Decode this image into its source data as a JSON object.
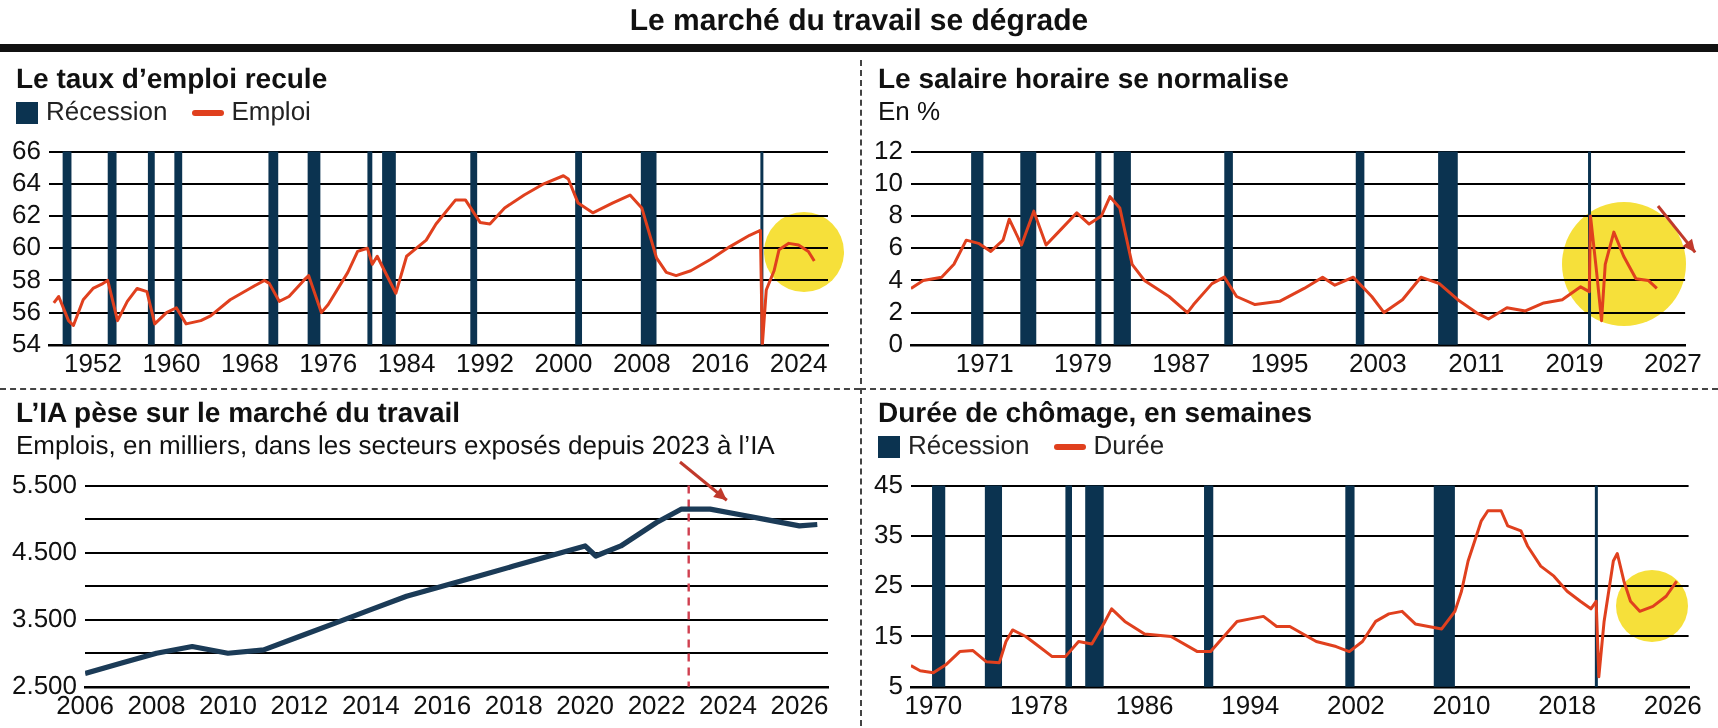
{
  "chart_data": [
    {
      "type": "line",
      "title": "Le taux d’emploi recule",
      "annotations": [
        "Le marché du travail se dégrade"
      ],
      "legend": "top left",
      "grid": "y",
      "marker": "none",
      "line_style": "solid",
      "xlim": [
        1947.5,
        2027
      ],
      "xticks": [
        1952,
        1960,
        1968,
        1976,
        1984,
        1992,
        2000,
        2008,
        2016,
        2024
      ],
      "ylim": [
        54,
        66
      ],
      "yticks": [
        54,
        56,
        58,
        60,
        62,
        64,
        66
      ],
      "x": [
        1948,
        1948.5,
        1949.5,
        1950,
        1951,
        1952,
        1953,
        1953.5,
        1954.5,
        1955.5,
        1956.5,
        1957.5,
        1958.3,
        1959.5,
        1960.5,
        1961.5,
        1963,
        1964,
        1966,
        1968,
        1969.5,
        1970,
        1971,
        1972,
        1973.5,
        1974,
        1975.3,
        1976,
        1978,
        1979,
        1980,
        1980.5,
        1981,
        1982.9,
        1984,
        1986,
        1987,
        1989,
        1990,
        1991.5,
        1992.5,
        1994,
        1996,
        1998,
        2000,
        2000.5,
        2001.5,
        2003,
        2005,
        2006.8,
        2008,
        2009.5,
        2010.5,
        2011.5,
        2013,
        2015,
        2017,
        2019,
        2020.1,
        2020.3,
        2020.7,
        2021.5,
        2022,
        2023,
        2024,
        2025,
        2025.6
      ],
      "series": [
        {
          "name": "Emploi",
          "color": "#e0401e",
          "values": [
            56.6,
            57.0,
            55.5,
            55.2,
            56.8,
            57.5,
            57.8,
            58.0,
            55.5,
            56.7,
            57.5,
            57.3,
            55.3,
            56.0,
            56.3,
            55.3,
            55.5,
            55.8,
            56.8,
            57.5,
            58.0,
            57.8,
            56.7,
            57.0,
            58.0,
            58.3,
            56.0,
            56.5,
            58.5,
            59.8,
            60.0,
            59.0,
            59.5,
            57.2,
            59.5,
            60.5,
            61.5,
            63.0,
            63.0,
            61.6,
            61.5,
            62.5,
            63.3,
            64.0,
            64.5,
            64.3,
            62.8,
            62.2,
            62.8,
            63.3,
            62.5,
            59.4,
            58.5,
            58.3,
            58.6,
            59.3,
            60.1,
            60.8,
            61.1,
            54.0,
            57.4,
            58.6,
            59.9,
            60.3,
            60.2,
            59.8,
            59.2
          ]
        }
      ],
      "bands": [
        {
          "axis": "x",
          "from": 1948.9,
          "to": 1949.8,
          "label": "Récession",
          "color": "#0b3350"
        },
        {
          "axis": "x",
          "from": 1953.5,
          "to": 1954.4,
          "color": "#0b3350"
        },
        {
          "axis": "x",
          "from": 1957.6,
          "to": 1958.3,
          "color": "#0b3350"
        },
        {
          "axis": "x",
          "from": 1960.3,
          "to": 1961.1,
          "color": "#0b3350"
        },
        {
          "axis": "x",
          "from": 1969.9,
          "to": 1970.9,
          "color": "#0b3350"
        },
        {
          "axis": "x",
          "from": 1973.9,
          "to": 1975.2,
          "color": "#0b3350"
        },
        {
          "axis": "x",
          "from": 1980.0,
          "to": 1980.5,
          "color": "#0b3350"
        },
        {
          "axis": "x",
          "from": 1981.5,
          "to": 1982.9,
          "color": "#0b3350"
        },
        {
          "axis": "x",
          "from": 1990.5,
          "to": 1991.2,
          "color": "#0b3350"
        },
        {
          "axis": "x",
          "from": 2001.2,
          "to": 2001.9,
          "color": "#0b3350"
        },
        {
          "axis": "x",
          "from": 2007.9,
          "to": 2009.5,
          "color": "#0b3350"
        },
        {
          "axis": "x",
          "from": 2020.1,
          "to": 2020.3,
          "color": "#0b3350"
        }
      ]
    },
    {
      "type": "line",
      "title": "Le salaire horaire se normalise",
      "subtitle": "En %",
      "grid": "y",
      "marker": "none",
      "line_style": "solid",
      "xlim": [
        1965,
        2028
      ],
      "xticks": [
        1971,
        1979,
        1987,
        1995,
        2003,
        2011,
        2019,
        2027
      ],
      "ylim": [
        0,
        12
      ],
      "yticks": [
        0,
        2,
        4,
        6,
        8,
        10,
        12
      ],
      "x": [
        1965,
        1966,
        1967.5,
        1968.5,
        1969.5,
        1970.5,
        1971.5,
        1972.5,
        1973,
        1974,
        1975,
        1976,
        1977,
        1978.5,
        1979.5,
        1980.5,
        1981.2,
        1982,
        1983,
        1984,
        1986,
        1987.5,
        1988,
        1989.5,
        1990.5,
        1991.5,
        1993,
        1995,
        1997,
        1998.5,
        1999.5,
        2001,
        2002.5,
        2003.5,
        2005,
        2006.5,
        2008,
        2009.5,
        2011,
        2012,
        2013.5,
        2015,
        2016.5,
        2018,
        2019.5,
        2020.2,
        2020.3,
        2020.8,
        2021.2,
        2021.5,
        2022.2,
        2023,
        2024,
        2025,
        2025.7
      ],
      "series": [
        {
          "color": "#e0401e",
          "values": [
            3.5,
            4.0,
            4.2,
            5.0,
            6.5,
            6.3,
            5.8,
            6.5,
            7.8,
            6.2,
            8.3,
            6.2,
            7.0,
            8.2,
            7.5,
            8.0,
            9.2,
            8.5,
            5.0,
            4.0,
            3.0,
            2.0,
            2.5,
            3.8,
            4.2,
            3.0,
            2.5,
            2.7,
            3.5,
            4.2,
            3.7,
            4.2,
            3.0,
            2.0,
            2.8,
            4.2,
            3.8,
            2.8,
            2.0,
            1.6,
            2.3,
            2.1,
            2.6,
            2.8,
            3.6,
            3.3,
            8.0,
            4.5,
            1.5,
            5.0,
            7.0,
            5.5,
            4.1,
            4.0,
            3.5
          ]
        }
      ],
      "bands": [
        {
          "axis": "x",
          "from": 1969.9,
          "to": 1970.9,
          "color": "#0b3350"
        },
        {
          "axis": "x",
          "from": 1973.9,
          "to": 1975.2,
          "color": "#0b3350"
        },
        {
          "axis": "x",
          "from": 1980.0,
          "to": 1980.5,
          "color": "#0b3350"
        },
        {
          "axis": "x",
          "from": 1981.5,
          "to": 1982.9,
          "color": "#0b3350"
        },
        {
          "axis": "x",
          "from": 1990.5,
          "to": 1991.2,
          "color": "#0b3350"
        },
        {
          "axis": "x",
          "from": 2001.2,
          "to": 2001.9,
          "color": "#0b3350"
        },
        {
          "axis": "x",
          "from": 2007.9,
          "to": 2009.5,
          "color": "#0b3350"
        },
        {
          "axis": "x",
          "from": 2020.1,
          "to": 2020.3,
          "color": "#0b3350"
        }
      ]
    },
    {
      "type": "line",
      "title": "L’IA pèse sur le marché du travail",
      "subtitle": "Emplois, en milliers, dans les secteurs exposés depuis 2023 à l’IA",
      "grid": "y",
      "marker": "none",
      "line_style": "solid",
      "xlim": [
        2006,
        2026.8
      ],
      "xticks": [
        2006,
        2008,
        2010,
        2012,
        2014,
        2016,
        2018,
        2020,
        2022,
        2024,
        2026
      ],
      "ylim": [
        2500,
        5500
      ],
      "yticks": [
        {
          "value": 2500,
          "label": "2.500"
        },
        {
          "value": 3000,
          "label": null
        },
        {
          "value": 3500,
          "label": "3.500"
        },
        {
          "value": 4000,
          "label": null
        },
        {
          "value": 4500,
          "label": "4.500"
        },
        {
          "value": 5000,
          "label": null
        },
        {
          "value": 5500,
          "label": "5.500"
        }
      ],
      "x": [
        2006,
        2007,
        2008,
        2009,
        2010,
        2011,
        2012,
        2013,
        2014,
        2015,
        2016,
        2017,
        2018,
        2019,
        2020,
        2020.3,
        2021,
        2022,
        2022.7,
        2023.5,
        2024.5,
        2025,
        2026,
        2026.5
      ],
      "series": [
        {
          "color": "#1b3b57",
          "values": [
            2700,
            2850,
            3000,
            3100,
            3000,
            3050,
            3250,
            3450,
            3650,
            3850,
            4000,
            4150,
            4300,
            4450,
            4600,
            4450,
            4600,
            4950,
            5150,
            5150,
            5050,
            5000,
            4900,
            4920
          ]
        }
      ],
      "ref_lines": [
        {
          "axis": "x",
          "value": 2022.9,
          "color": "#d04050",
          "line_style": "dashed"
        }
      ]
    },
    {
      "type": "line",
      "title": "Durée de chômage, en semaines",
      "legend": "top left",
      "grid": "y",
      "marker": "none",
      "line_style": "solid",
      "xlim": [
        1968.3,
        2027.2
      ],
      "xticks": [
        1970,
        1978,
        1986,
        1994,
        2002,
        2010,
        2018,
        2026
      ],
      "ylim": [
        5,
        45
      ],
      "yticks": [
        5,
        15,
        25,
        35,
        45
      ],
      "x": [
        1968.3,
        1969,
        1970,
        1971,
        1972,
        1973,
        1974,
        1975,
        1975.5,
        1976,
        1977,
        1978,
        1979,
        1980,
        1981,
        1982,
        1983,
        1983.5,
        1984.5,
        1986,
        1988,
        1990,
        1991,
        1992,
        1993,
        1994,
        1995,
        1996,
        1997,
        1998,
        1999,
        2000.5,
        2001.5,
        2002.5,
        2003.5,
        2004.5,
        2005.5,
        2006.5,
        2007.5,
        2008.5,
        2009.5,
        2010,
        2010.5,
        2011,
        2011.5,
        2012,
        2013,
        2013.5,
        2014.5,
        2015,
        2016,
        2017,
        2018,
        2019,
        2019.8,
        2020.2,
        2020.4,
        2020.8,
        2021.5,
        2021.8,
        2022.3,
        2022.8,
        2023.5,
        2024.5,
        2025.5,
        2026.3
      ],
      "series": [
        {
          "name": "Durée",
          "color": "#e0401e",
          "values": [
            9.2,
            8.2,
            7.8,
            9.5,
            12.0,
            12.2,
            10,
            9.8,
            14,
            16.3,
            15,
            13,
            11,
            11,
            14,
            13.5,
            18,
            20.5,
            18,
            15.5,
            15,
            12,
            12,
            15,
            18,
            18.5,
            19,
            17,
            17,
            15.5,
            14,
            13,
            12,
            14,
            18,
            19.5,
            20,
            17.5,
            17,
            16.5,
            20,
            24,
            30,
            34,
            38,
            40,
            40,
            37,
            36,
            33,
            29,
            27,
            24,
            22,
            20.5,
            22,
            7,
            18,
            30,
            31.5,
            26,
            22,
            20,
            21,
            23,
            26
          ]
        }
      ],
      "bands": [
        {
          "axis": "x",
          "from": 1969.9,
          "to": 1970.9,
          "label": "Récession",
          "color": "#0b3350"
        },
        {
          "axis": "x",
          "from": 1973.9,
          "to": 1975.2,
          "color": "#0b3350"
        },
        {
          "axis": "x",
          "from": 1980.0,
          "to": 1980.5,
          "color": "#0b3350"
        },
        {
          "axis": "x",
          "from": 1981.5,
          "to": 1982.9,
          "color": "#0b3350"
        },
        {
          "axis": "x",
          "from": 1990.5,
          "to": 1991.2,
          "color": "#0b3350"
        },
        {
          "axis": "x",
          "from": 2001.2,
          "to": 2001.9,
          "color": "#0b3350"
        },
        {
          "axis": "x",
          "from": 2007.9,
          "to": 2009.5,
          "color": "#0b3350"
        },
        {
          "axis": "x",
          "from": 2020.1,
          "to": 2020.3,
          "color": "#0b3350"
        }
      ]
    }
  ]
}
